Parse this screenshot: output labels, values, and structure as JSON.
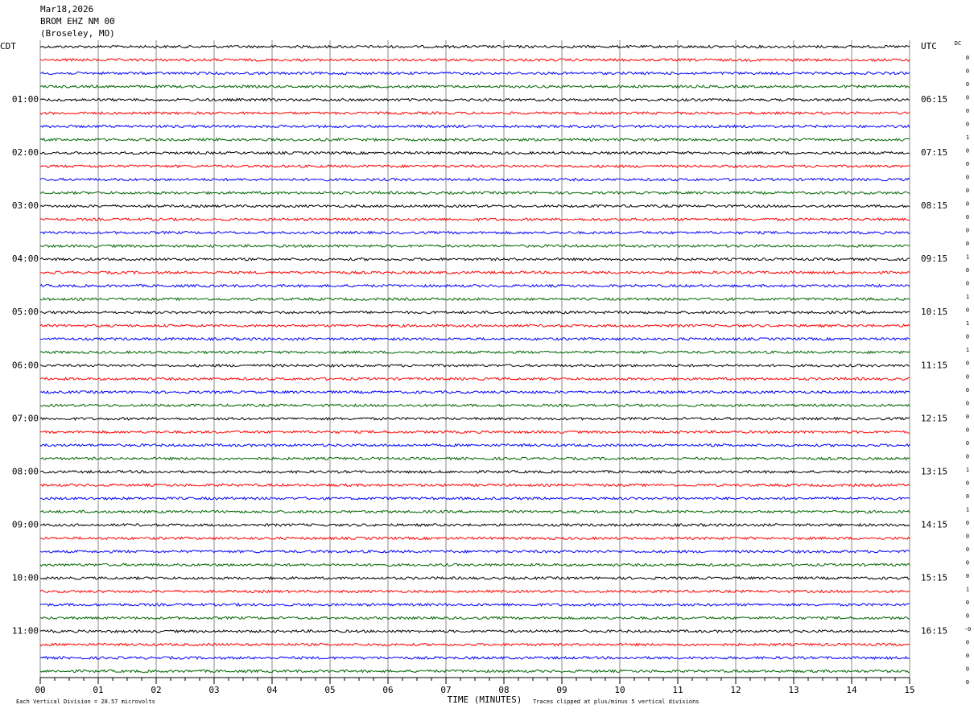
{
  "chart_data": {
    "type": "helicorder",
    "date": "Mar18,2026",
    "station": "BROM EHZ NM 00",
    "location": "(Broseley, MO)",
    "xlabel": "TIME (MINUTES)",
    "scale_note": "Each Vertical Division =   28.57 microvolts",
    "clip_note": "Traces clipped at plus/minus 5 vertical divisions",
    "xlim": [
      0,
      15
    ],
    "xticks": [
      {
        "value": 0,
        "label": "00"
      },
      {
        "value": 1,
        "label": "01"
      },
      {
        "value": 2,
        "label": "02"
      },
      {
        "value": 3,
        "label": "03"
      },
      {
        "value": 4,
        "label": "04"
      },
      {
        "value": 5,
        "label": "05"
      },
      {
        "value": 6,
        "label": "06"
      },
      {
        "value": 7,
        "label": "07"
      },
      {
        "value": 8,
        "label": "08"
      },
      {
        "value": 9,
        "label": "09"
      },
      {
        "value": 10,
        "label": "10"
      },
      {
        "value": 11,
        "label": "11"
      },
      {
        "value": 12,
        "label": "12"
      },
      {
        "value": 13,
        "label": "13"
      },
      {
        "value": 14,
        "label": "14"
      },
      {
        "value": 15,
        "label": "15"
      }
    ],
    "left_labels": [
      "CDT",
      "01:00",
      "02:00",
      "03:00",
      "04:00",
      "05:00",
      "06:00",
      "07:00",
      "08:00",
      "09:00",
      "10:00",
      "11:00"
    ],
    "right_labels": [
      "UTC",
      "06:15",
      "07:15",
      "08:15",
      "09:15",
      "10:15",
      "11:15",
      "12:15",
      "13:15",
      "14:15",
      "15:15",
      "16:15"
    ],
    "dc_header": "DC",
    "dc_values": [
      "0",
      "0",
      "0",
      "0",
      "0",
      "0",
      "1",
      "0",
      "0",
      "0",
      "0",
      "0",
      "0",
      "0",
      "0",
      "1",
      "0",
      "0",
      "1",
      "0",
      "1",
      "0",
      "1",
      "0",
      "0",
      "0",
      "0",
      "0",
      "0",
      "0",
      "0",
      "1",
      "0",
      "0",
      "1",
      "0",
      "0",
      "0",
      "0",
      "0",
      "1",
      "0",
      "0",
      "-0",
      "0",
      "0",
      "0",
      "0"
    ],
    "trace_colors": [
      "#000000",
      "#ff0000",
      "#0000ff",
      "#006600"
    ]
  }
}
